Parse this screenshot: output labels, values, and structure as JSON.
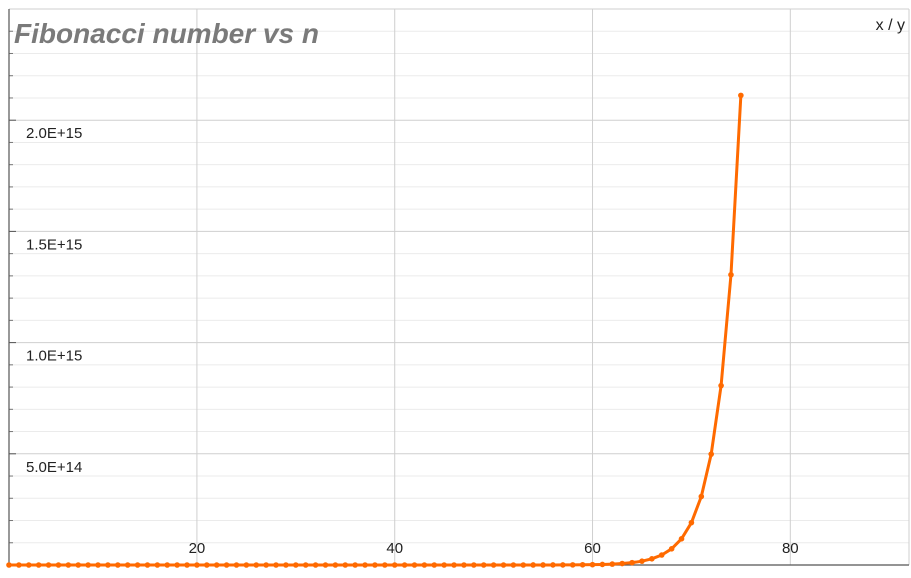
{
  "chart_data": {
    "type": "line",
    "title": "Fibonacci number vs n",
    "axis_corner_label": "x / y",
    "xlim": [
      1,
      92
    ],
    "ylim": [
      0,
      2500000000000000.0
    ],
    "x_ticks": [
      20,
      40,
      60,
      80
    ],
    "x_tick_labels": [
      "20",
      "40",
      "60",
      "80"
    ],
    "y_ticks": [
      500000000000000.0,
      1000000000000000.0,
      1500000000000000.0,
      2000000000000000.0
    ],
    "y_tick_labels": [
      "5.0E+14",
      "1.0E+15",
      "1.5E+15",
      "2.0E+15"
    ],
    "grid": true,
    "legend": "none",
    "series": [
      {
        "color": "#ff6a00",
        "x": [
          1,
          2,
          3,
          4,
          5,
          6,
          7,
          8,
          9,
          10,
          11,
          12,
          13,
          14,
          15,
          16,
          17,
          18,
          19,
          20,
          21,
          22,
          23,
          24,
          25,
          26,
          27,
          28,
          29,
          30,
          31,
          32,
          33,
          34,
          35,
          36,
          37,
          38,
          39,
          40,
          41,
          42,
          43,
          44,
          45,
          46,
          47,
          48,
          49,
          50,
          51,
          52,
          53,
          54,
          55,
          56,
          57,
          58,
          59,
          60,
          61,
          62,
          63,
          64,
          65,
          66,
          67,
          68,
          69,
          70,
          71,
          72,
          73,
          74,
          75
        ],
        "y": [
          1,
          1,
          2,
          3,
          5,
          8,
          13,
          21,
          34,
          55,
          89,
          144,
          233,
          377,
          610,
          987,
          1597,
          2584,
          4181,
          6765,
          10946,
          17711,
          28657,
          46368,
          75025,
          121393,
          196418,
          317811,
          514229,
          832040,
          1346269,
          2178309,
          3524578,
          5702887,
          9227465,
          14930352,
          24157817,
          39088169,
          63245986,
          102334155,
          165580141,
          267914296,
          433494437,
          701408733,
          1134903170,
          1836311903,
          2971215073,
          4807526976,
          7778742049,
          12586269025,
          20365011074,
          32951280099,
          53316291173,
          86267571272,
          139583862445,
          225851433717,
          365435296162,
          591286729879,
          956722026041,
          1548008755920,
          2504730781961,
          4052739537881,
          6557470319842,
          10610209857723,
          17167680177565,
          27777890035288,
          44945570212853,
          72723460248141,
          117669030460994,
          190392490709135,
          308061521170129,
          498454011879264,
          806515533049393,
          1304969544928657,
          2111485077978050
        ]
      }
    ]
  }
}
